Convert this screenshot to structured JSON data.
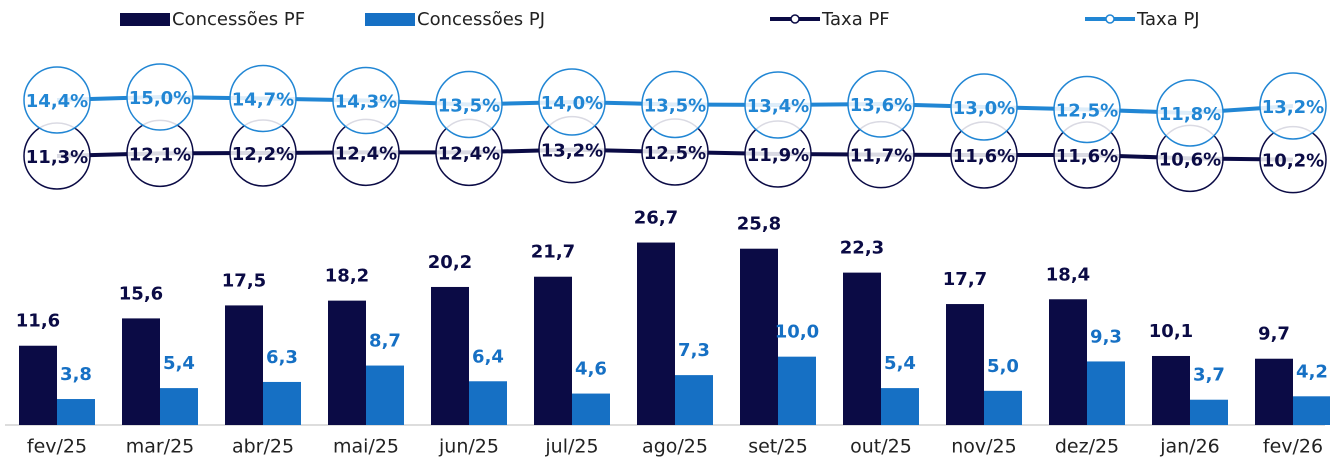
{
  "chart_data": {
    "type": "bar-line",
    "categories": [
      "fev/25",
      "mar/25",
      "abr/25",
      "mai/25",
      "jun/25",
      "jul/25",
      "ago/25",
      "set/25",
      "out/25",
      "nov/25",
      "dez/25",
      "jan/26",
      "fev/26"
    ],
    "ylim": [
      0,
      30
    ],
    "y2lim": [
      8,
      20
    ],
    "y3lim": [
      5,
      20
    ],
    "series": [
      {
        "name": "Concessões PF",
        "type": "bar",
        "color": "#0b0b45",
        "values": [
          11.6,
          15.6,
          17.5,
          18.2,
          20.2,
          21.7,
          26.7,
          25.8,
          22.3,
          17.7,
          18.4,
          10.1,
          9.7
        ],
        "value_labels": [
          "11,6",
          "15,6",
          "17,5",
          "18,2",
          "20,2",
          "21,7",
          "26,7",
          "25,8",
          "22,3",
          "17,7",
          "18,4",
          "10,1",
          "9,7"
        ]
      },
      {
        "name": "Concessões PJ",
        "type": "bar",
        "color": "#1670c4",
        "values": [
          3.8,
          5.4,
          6.3,
          8.7,
          6.4,
          4.6,
          7.3,
          10.0,
          5.4,
          5.0,
          9.3,
          3.7,
          4.2
        ],
        "value_labels": [
          "3,8",
          "5,4",
          "6,3",
          "8,7",
          "6,4",
          "4,6",
          "7,3",
          "10,0",
          "5,4",
          "5,0",
          "9,3",
          "3,7",
          "4,2"
        ]
      },
      {
        "name": "Taxa PF",
        "type": "line",
        "axis": "y3",
        "color": "#0b0b45",
        "values": [
          11.3,
          12.1,
          12.2,
          12.4,
          12.4,
          13.2,
          12.5,
          11.9,
          11.7,
          11.6,
          11.6,
          10.6,
          10.2
        ],
        "value_labels": [
          "11,3%",
          "12,1%",
          "12,2%",
          "12,4%",
          "12,4%",
          "13,2%",
          "12,5%",
          "11,9%",
          "11,7%",
          "11,6%",
          "11,6%",
          "10,6%",
          "10,2%"
        ]
      },
      {
        "name": "Taxa PJ",
        "type": "line",
        "axis": "y2",
        "color": "#2186d4",
        "values": [
          14.4,
          15.0,
          14.7,
          14.3,
          13.5,
          14.0,
          13.5,
          13.4,
          13.6,
          13.0,
          12.5,
          11.8,
          13.2
        ],
        "value_labels": [
          "14,4%",
          "15,0%",
          "14,7%",
          "14,3%",
          "13,5%",
          "14,0%",
          "13,5%",
          "13,4%",
          "13,6%",
          "13,0%",
          "12,5%",
          "11,8%",
          "13,2%"
        ]
      }
    ]
  }
}
